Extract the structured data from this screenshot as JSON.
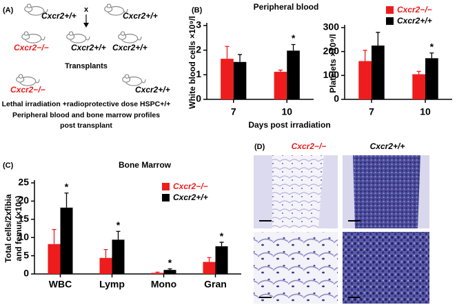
{
  "panel_labels": [
    "(A)",
    "(B)",
    "(C)",
    "(D)"
  ],
  "diagram": {
    "parents": [
      "Cxcr2+/+",
      "Cxcr2+/+"
    ],
    "cross": "x",
    "offspring": [
      "Cxcr2−/−",
      "Cxcr2+/+",
      "Cxcr2+/+"
    ],
    "transplants_title": "Transplants",
    "recipients": [
      "Cxcr2−/−",
      "Cxcr2+/+"
    ],
    "notes": [
      "Lethal irradiation +radioprotective dose HSPC+/+",
      "Peripheral blood and bone marrow profiles",
      "post transplant"
    ]
  },
  "histology": {
    "columns": [
      "Cxcr2−/−",
      "Cxcr2+/+"
    ]
  },
  "chart_data": [
    {
      "type": "bar",
      "title": "Peripheral blood",
      "xlabel": "Days post irradiation",
      "ylabel": [
        "White blood cells ×10⁹/l"
      ],
      "categories": [
        "7",
        "10"
      ],
      "series": [
        {
          "color": "#ee1c1c",
          "values": [
            1.65,
            1.12
          ],
          "errors": [
            0.5,
            0.07
          ],
          "labels": [
            null,
            null
          ]
        },
        {
          "color": "#000000",
          "values": [
            1.52,
            1.98
          ],
          "errors": [
            0.3,
            0.25
          ],
          "labels": [
            null,
            "*"
          ]
        }
      ],
      "ylim": [
        0,
        3
      ],
      "yticks": [
        0,
        1,
        2,
        3
      ],
      "legend": false
    },
    {
      "type": "bar",
      "ylabel": [
        "Platelets ×10⁹/l"
      ],
      "categories": [
        "7",
        "10"
      ],
      "series": [
        {
          "name": "Cxcr2−/−",
          "color": "#ee1c1c",
          "values": [
            160,
            105
          ],
          "errors": [
            45,
            12
          ],
          "labels": [
            null,
            null
          ]
        },
        {
          "name": "Cxcr2+/+",
          "color": "#000000",
          "values": [
            225,
            172
          ],
          "errors": [
            55,
            22
          ],
          "labels": [
            null,
            "*"
          ]
        }
      ],
      "ylim": [
        0,
        300
      ],
      "yticks": [
        0,
        100,
        200,
        300
      ],
      "legend": true
    },
    {
      "type": "bar",
      "title": "Bone Marrow",
      "ylabel": [
        "Total cells/2xfibia",
        "and femur (×10⁶)"
      ],
      "categories": [
        "WBC",
        "Lymp",
        "Mono",
        "Gran"
      ],
      "series": [
        {
          "name": "Cxcr2−/−",
          "color": "#ee1c1c",
          "values": [
            8.2,
            4.4,
            0.3,
            3.3
          ],
          "errors": [
            4,
            2.3,
            0.2,
            1.2
          ],
          "labels": [
            null,
            null,
            null,
            null
          ]
        },
        {
          "name": "Cxcr2+/+",
          "color": "#000000",
          "values": [
            18.2,
            9.4,
            1.1,
            7.6
          ],
          "errors": [
            4,
            2.3,
            0.3,
            1.1
          ],
          "labels": [
            "*",
            "*",
            "*",
            "*"
          ]
        }
      ],
      "ylim": [
        0,
        25
      ],
      "yticks": [
        0,
        5,
        10,
        15,
        20,
        25
      ],
      "legend": true
    }
  ]
}
